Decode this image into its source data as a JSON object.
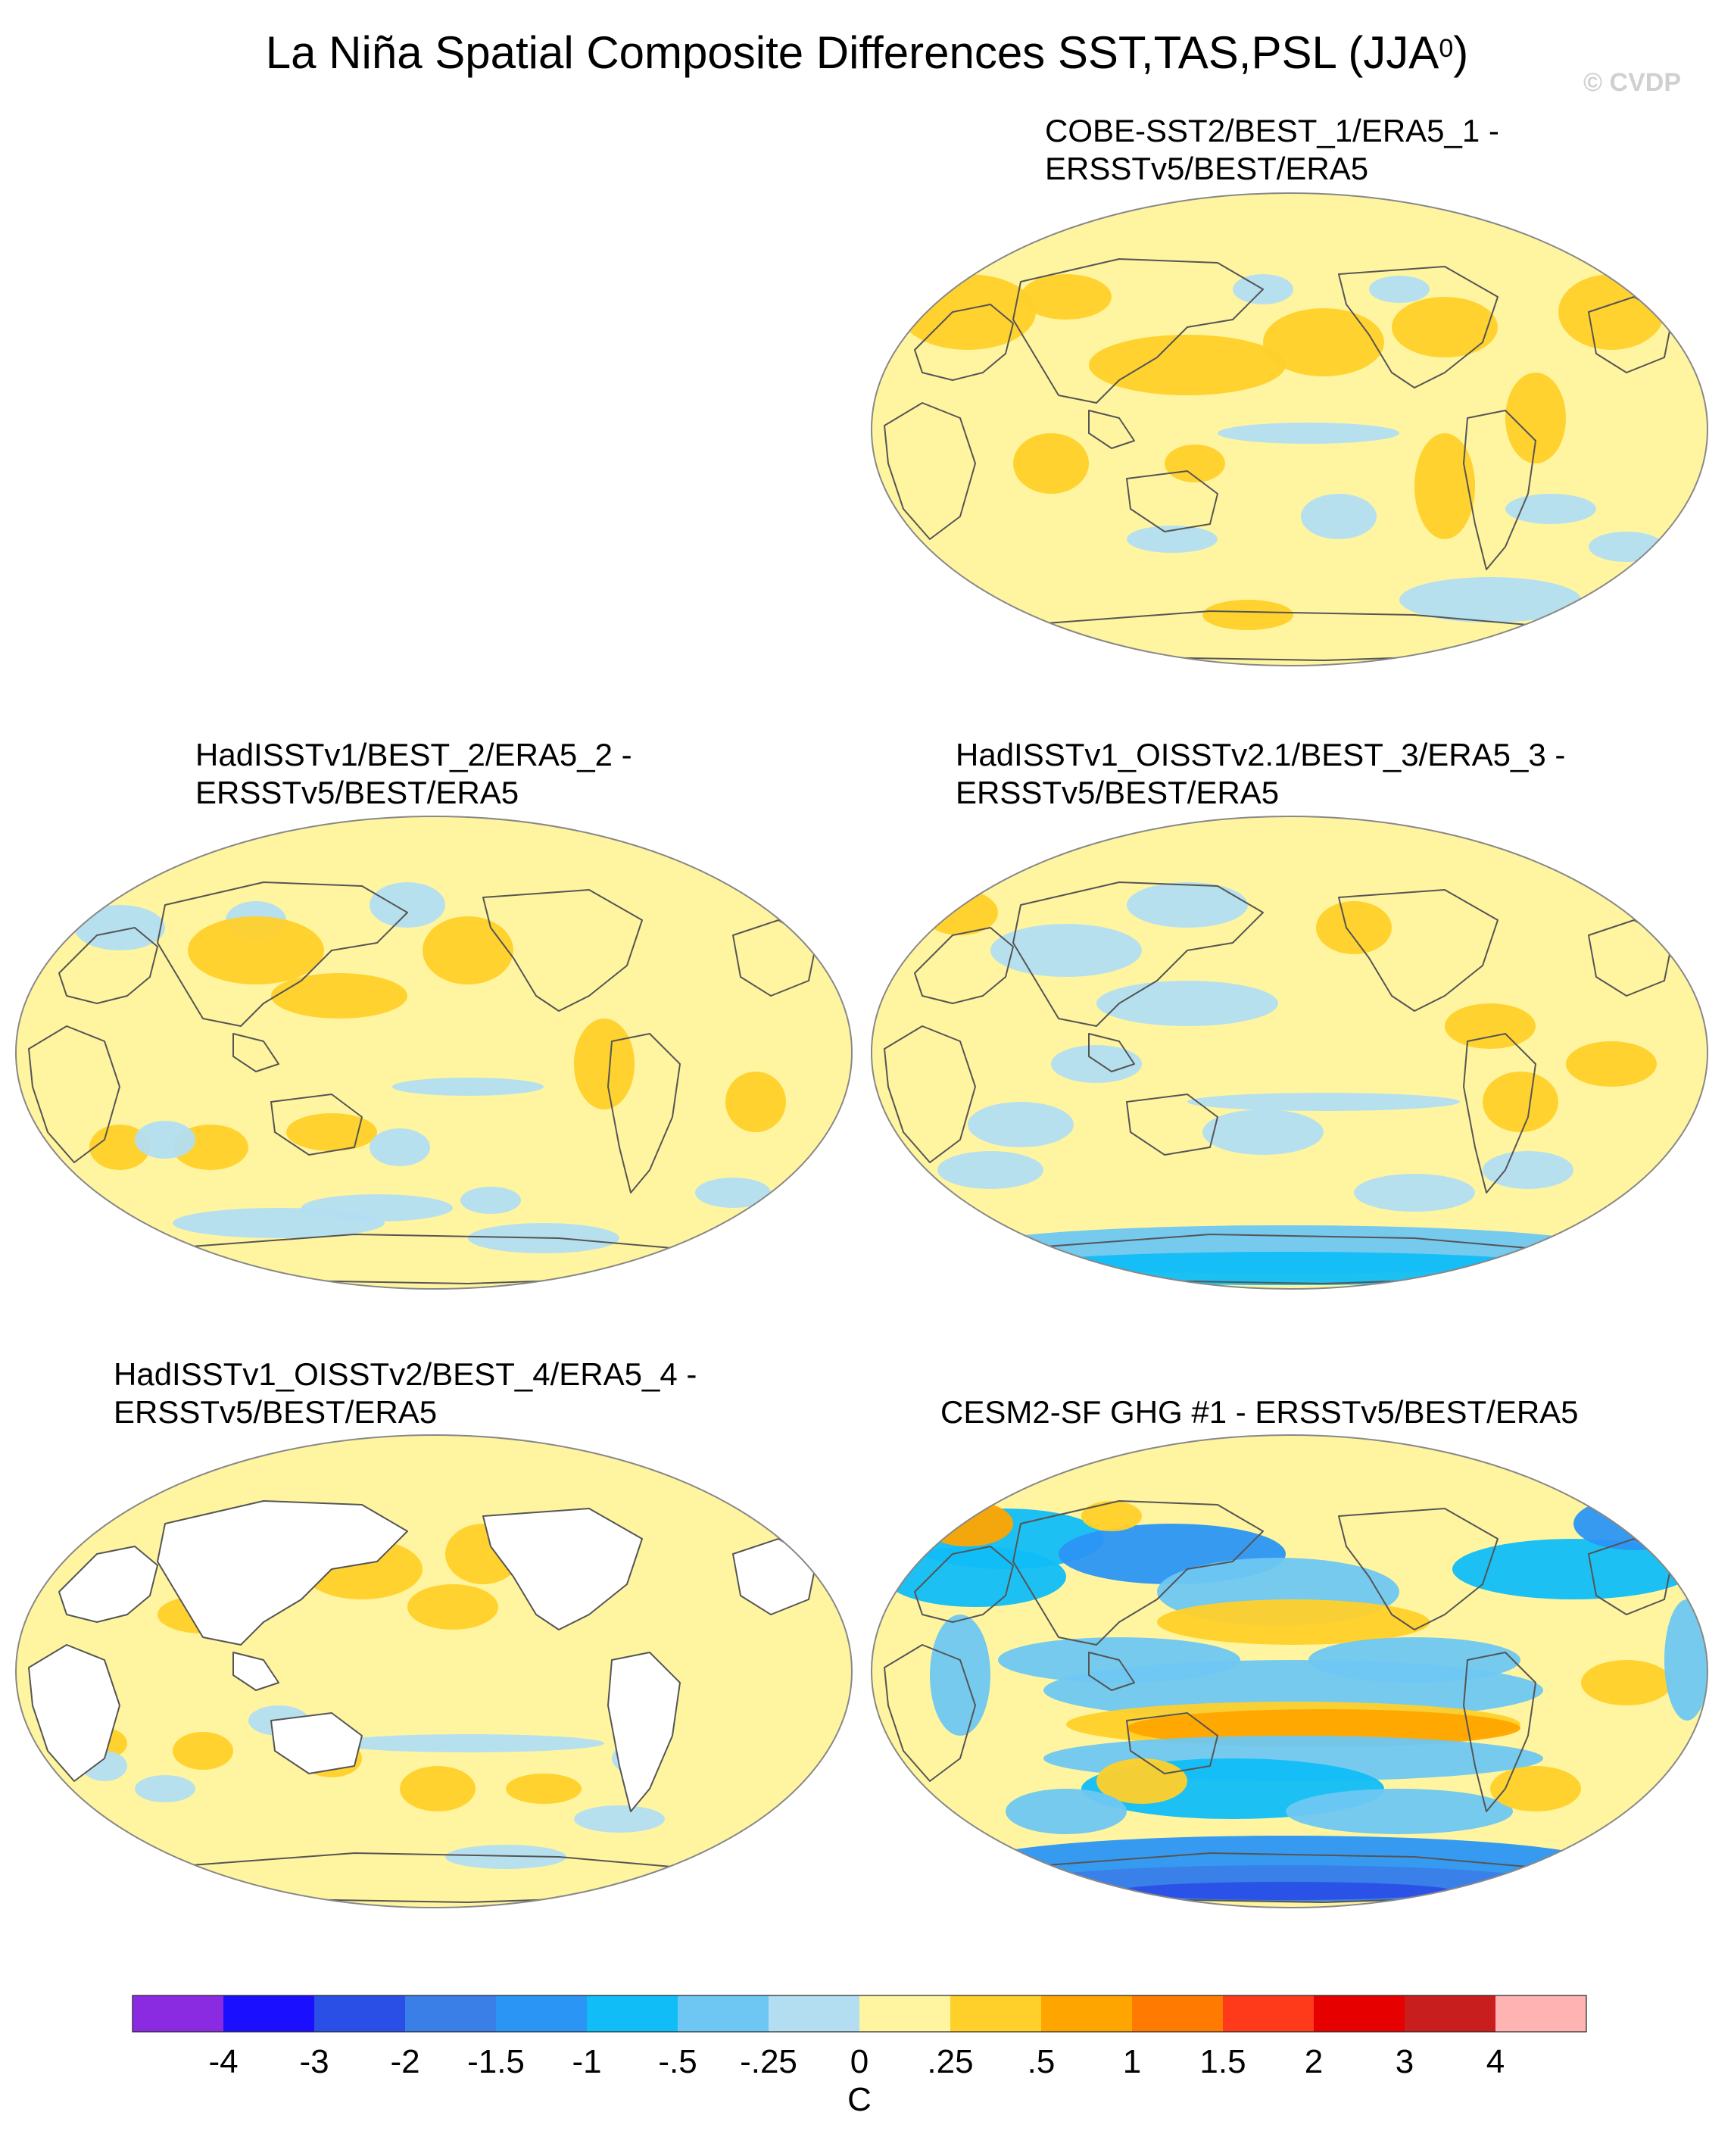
{
  "title": {
    "text": "La Niña Spatial Composite Differences SST,TAS,PSL (JJA",
    "superscript": "0",
    "close": ")"
  },
  "credit": "© CVDP",
  "colors": {
    "ocean_bg": "#fff5a0",
    "land_missing": "#ffffff",
    "coast": "#555555",
    "border": "#888888"
  },
  "panels": [
    {
      "id": "p1",
      "title_line1": "COBE-SST2/BEST_1/ERA5_1 -",
      "title_line2": "ERSSTv5/BEST/ERA5"
    },
    {
      "id": "p2",
      "title_line1": "HadISSTv1/BEST_2/ERA5_2 -",
      "title_line2": "ERSSTv5/BEST/ERA5"
    },
    {
      "id": "p3",
      "title_line1": "HadISSTv1_OISSTv2.1/BEST_3/ERA5_3 -",
      "title_line2": "ERSSTv5/BEST/ERA5"
    },
    {
      "id": "p4",
      "title_line1": "HadISSTv1_OISSTv2/BEST_4/ERA5_4 -",
      "title_line2": "ERSSTv5/BEST/ERA5"
    },
    {
      "id": "p5",
      "title_line1": "CESM2-SF GHG #1 - ERSSTv5/BEST/ERA5",
      "title_line2": ""
    }
  ],
  "colorbar": {
    "units": "C",
    "tick_labels": [
      "-4",
      "-3",
      "-2",
      "-1.5",
      "-1",
      "-.5",
      "-.25",
      "0",
      ".25",
      ".5",
      "1",
      "1.5",
      "2",
      "3",
      "4"
    ],
    "colors": [
      "#8a2be2",
      "#1a10ff",
      "#2a4fe6",
      "#3a7ee8",
      "#2b95f5",
      "#10bdf7",
      "#6ec7f2",
      "#b3def2",
      "#fff5a0",
      "#ffd02a",
      "#ffa500",
      "#ff7a00",
      "#ff3a1a",
      "#e60000",
      "#c81e1e",
      "#ffb3b3"
    ]
  }
}
